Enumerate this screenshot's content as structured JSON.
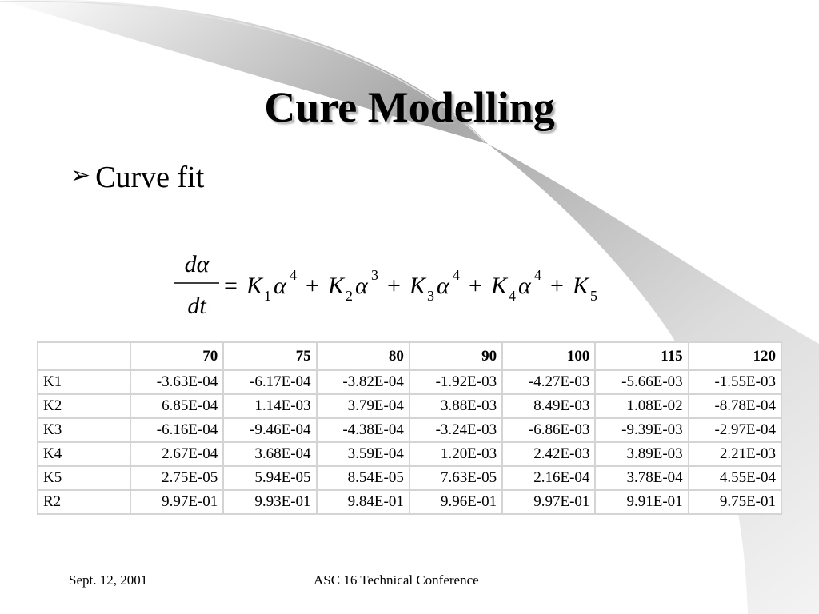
{
  "slide": {
    "title": "Cure Modelling",
    "bullet": "Curve fit",
    "bullet_icon": "arrowhead-bullet-icon"
  },
  "equation": {
    "lhs_numerator": "dα",
    "lhs_denominator": "dt",
    "terms": [
      {
        "coef": "K",
        "sub": "1",
        "exp": "4"
      },
      {
        "coef": "K",
        "sub": "2",
        "exp": "3"
      },
      {
        "coef": "K",
        "sub": "3",
        "exp": "4"
      },
      {
        "coef": "K",
        "sub": "4",
        "exp": "4"
      },
      {
        "coef": "K",
        "sub": "5",
        "exp": ""
      }
    ]
  },
  "table": {
    "columns": [
      "",
      "70",
      "75",
      "80",
      "90",
      "100",
      "115",
      "120"
    ],
    "rows": [
      {
        "label": "K1",
        "values": [
          "-3.63E-04",
          "-6.17E-04",
          "-3.82E-04",
          "-1.92E-03",
          "-4.27E-03",
          "-5.66E-03",
          "-1.55E-03"
        ]
      },
      {
        "label": "K2",
        "values": [
          "6.85E-04",
          "1.14E-03",
          "3.79E-04",
          "3.88E-03",
          "8.49E-03",
          "1.08E-02",
          "-8.78E-04"
        ]
      },
      {
        "label": "K3",
        "values": [
          "-6.16E-04",
          "-9.46E-04",
          "-4.38E-04",
          "-3.24E-03",
          "-6.86E-03",
          "-9.39E-03",
          "-2.97E-04"
        ]
      },
      {
        "label": "K4",
        "values": [
          "2.67E-04",
          "3.68E-04",
          "3.59E-04",
          "1.20E-03",
          "2.42E-03",
          "3.89E-03",
          "2.21E-03"
        ]
      },
      {
        "label": "K5",
        "values": [
          "2.75E-05",
          "5.94E-05",
          "8.54E-05",
          "7.63E-05",
          "2.16E-04",
          "3.78E-04",
          "4.55E-04"
        ]
      },
      {
        "label": "R2",
        "values": [
          "9.97E-01",
          "9.93E-01",
          "9.84E-01",
          "9.96E-01",
          "9.97E-01",
          "9.91E-01",
          "9.75E-01"
        ]
      }
    ]
  },
  "footer": {
    "date": "Sept. 12, 2001",
    "conference": "ASC 16 Technical Conference"
  }
}
